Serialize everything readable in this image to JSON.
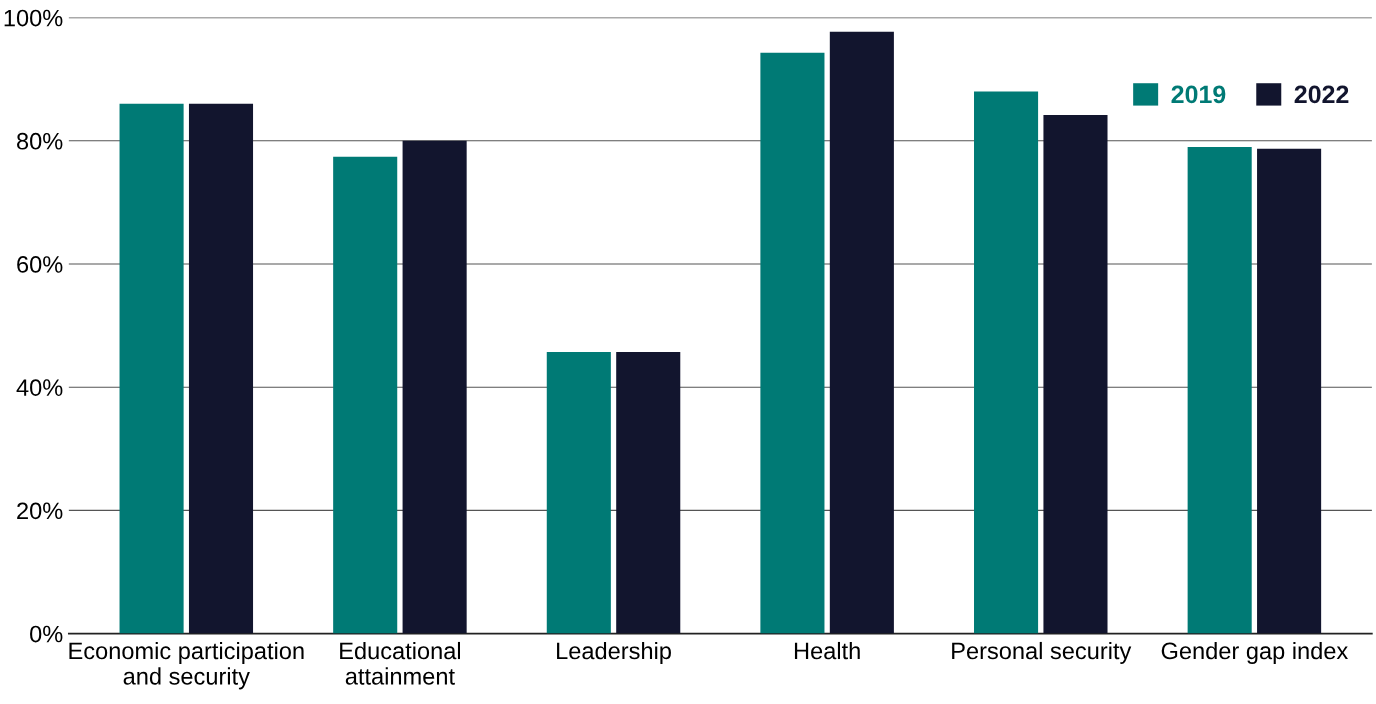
{
  "chart_data": {
    "type": "bar",
    "categories": [
      "Economic participation\nand security",
      "Educational\nattainment",
      "Leadership",
      "Health",
      "Personal security",
      "Gender gap index"
    ],
    "series": [
      {
        "name": "2019",
        "color": "#007a75",
        "values": [
          86.0,
          77.4,
          45.7,
          94.3,
          88.0,
          79.0
        ]
      },
      {
        "name": "2022",
        "color": "#12152e",
        "values": [
          86.0,
          80.0,
          45.7,
          97.7,
          84.2,
          78.7
        ]
      }
    ],
    "ylim": [
      0,
      100
    ],
    "yticks": [
      {
        "value": 0,
        "label": "0%"
      },
      {
        "value": 20,
        "label": "20%"
      },
      {
        "value": 40,
        "label": "40%"
      },
      {
        "value": 60,
        "label": "60%"
      },
      {
        "value": 80,
        "label": "80%"
      },
      {
        "value": 100,
        "label": "100%"
      }
    ],
    "grid": "y",
    "legend": "top right"
  }
}
